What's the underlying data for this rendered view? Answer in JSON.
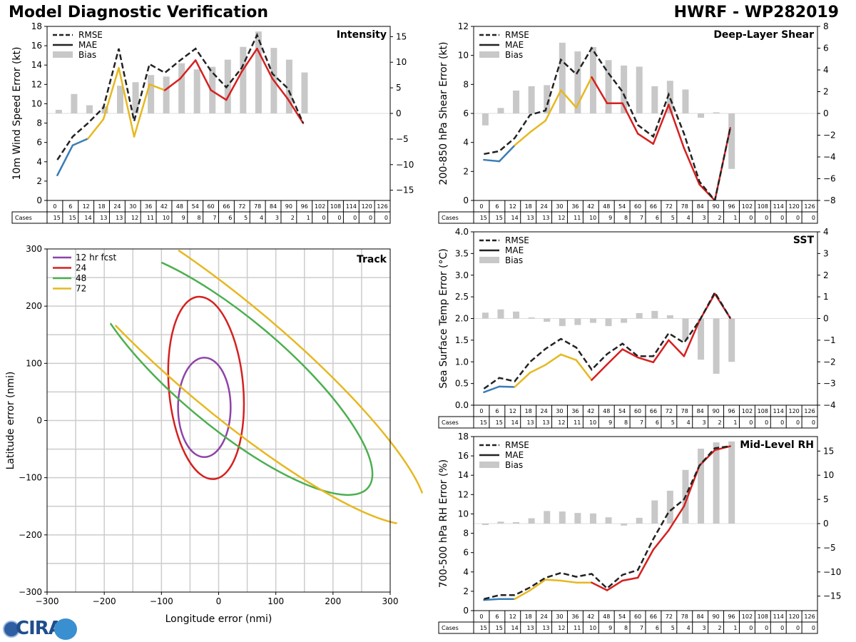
{
  "header": {
    "title_left": "Model Diagnostic Verification",
    "title_right": "HWRF - WP282019"
  },
  "logo": {
    "text": "CIRA"
  },
  "colors": {
    "rmse": "#222222",
    "mae_early": "#3a7db5",
    "mae_mid": "#e6b820",
    "mae_late": "#d62020",
    "bias": "#c8c8c8",
    "track_12": "#8e44a8",
    "track_24": "#d62020",
    "track_48": "#4caf50",
    "track_72": "#e6b820",
    "grid": "#cccccc"
  },
  "chart_data": [
    {
      "id": "intensity",
      "type": "line",
      "title": "Intensity",
      "ylabel": "10m Wind Speed Error (kt)",
      "ylim": [
        0,
        18
      ],
      "yticks": [
        0,
        2,
        4,
        6,
        8,
        10,
        12,
        14,
        16,
        18
      ],
      "y2lim": [
        -17,
        17
      ],
      "y2ticks": [
        -15,
        -10,
        -5,
        0,
        5,
        10,
        15
      ],
      "legend": [
        "RMSE",
        "MAE",
        "Bias"
      ],
      "x": [
        0,
        6,
        12,
        18,
        24,
        30,
        36,
        42,
        48,
        54,
        60,
        66,
        72,
        78,
        84,
        90,
        96
      ],
      "rmse": [
        4.2,
        6.6,
        8.0,
        9.6,
        15.7,
        8.2,
        14.1,
        13.2,
        14.5,
        15.7,
        13.4,
        11.7,
        13.7,
        17.1,
        13.1,
        11.6,
        8.0
      ],
      "mae": [
        2.6,
        5.7,
        6.4,
        8.4,
        13.7,
        6.6,
        12.0,
        11.4,
        12.6,
        14.5,
        11.4,
        10.4,
        13.3,
        15.7,
        12.6,
        10.5,
        8.0
      ],
      "bias": [
        0.7,
        3.8,
        1.6,
        1.4,
        5.4,
        6.1,
        7.5,
        7.2,
        9.8,
        8.6,
        9.1,
        10.5,
        13.0,
        16.0,
        12.8,
        10.5,
        8.0
      ]
    },
    {
      "id": "shear",
      "type": "line",
      "title": "Deep-Layer Shear",
      "ylabel": "200-850 hPa Shear Error (kt)",
      "ylim": [
        0,
        12
      ],
      "yticks": [
        0,
        2,
        4,
        6,
        8,
        10,
        12
      ],
      "y2lim": [
        -8,
        8
      ],
      "y2ticks": [
        -8,
        -6,
        -4,
        -2,
        0,
        2,
        4,
        6,
        8
      ],
      "legend": [
        "RMSE",
        "MAE",
        "Bias"
      ],
      "x": [
        0,
        6,
        12,
        18,
        24,
        30,
        36,
        42,
        48,
        54,
        60,
        66,
        72,
        78,
        84,
        90,
        96
      ],
      "rmse": [
        3.2,
        3.4,
        4.3,
        5.9,
        6.2,
        9.7,
        8.7,
        10.5,
        8.9,
        7.5,
        5.2,
        4.4,
        7.3,
        4.6,
        1.3,
        0.0,
        5.0
      ],
      "mae": [
        2.8,
        2.7,
        3.8,
        4.7,
        5.5,
        7.6,
        6.4,
        8.5,
        6.7,
        6.7,
        4.6,
        3.9,
        6.6,
        3.6,
        1.1,
        0.0,
        5.0
      ],
      "bias": [
        -1.1,
        0.5,
        2.1,
        2.5,
        2.6,
        6.5,
        5.7,
        6.1,
        4.9,
        4.4,
        4.3,
        2.5,
        3.0,
        2.2,
        -0.4,
        0.1,
        -5.1
      ]
    },
    {
      "id": "sst",
      "type": "line",
      "title": "SST",
      "ylabel": "Sea Surface Temp Error (°C)",
      "ylim": [
        0,
        4
      ],
      "yticks": [
        0.0,
        0.5,
        1.0,
        1.5,
        2.0,
        2.5,
        3.0,
        3.5,
        4.0
      ],
      "y2lim": [
        -4,
        4
      ],
      "y2ticks": [
        -4,
        -3,
        -2,
        -1,
        0,
        1,
        2,
        3,
        4
      ],
      "legend": [
        "RMSE",
        "MAE",
        "Bias"
      ],
      "x": [
        0,
        6,
        12,
        18,
        24,
        30,
        36,
        42,
        48,
        54,
        60,
        66,
        72,
        78,
        84,
        90,
        96
      ],
      "rmse": [
        0.38,
        0.63,
        0.55,
        1.0,
        1.3,
        1.53,
        1.33,
        0.82,
        1.18,
        1.42,
        1.13,
        1.13,
        1.66,
        1.44,
        1.95,
        2.6,
        2.01
      ],
      "mae": [
        0.3,
        0.43,
        0.42,
        0.75,
        0.93,
        1.17,
        1.04,
        0.58,
        0.94,
        1.29,
        1.1,
        0.99,
        1.5,
        1.13,
        1.95,
        2.57,
        2.01
      ],
      "bias": [
        0.27,
        0.42,
        0.32,
        0.05,
        -0.15,
        -0.35,
        -0.3,
        -0.2,
        -0.35,
        -0.2,
        0.25,
        0.35,
        0.15,
        -1.0,
        -1.9,
        -2.55,
        -2.0
      ]
    },
    {
      "id": "rh",
      "type": "line",
      "title": "Mid-Level RH",
      "ylabel": "700-500 hPa RH Error (%)",
      "ylim": [
        0,
        18
      ],
      "yticks": [
        0,
        2,
        4,
        6,
        8,
        10,
        12,
        14,
        16,
        18
      ],
      "y2lim": [
        -18,
        18
      ],
      "y2ticks": [
        -15,
        -10,
        -5,
        0,
        5,
        10,
        15
      ],
      "legend": [
        "RMSE",
        "MAE",
        "Bias"
      ],
      "x": [
        0,
        6,
        12,
        18,
        24,
        30,
        36,
        42,
        48,
        54,
        60,
        66,
        72,
        78,
        84,
        90,
        96
      ],
      "rmse": [
        1.2,
        1.6,
        1.6,
        2.4,
        3.4,
        3.9,
        3.5,
        3.8,
        2.3,
        3.7,
        4.2,
        7.4,
        10.2,
        11.5,
        15.0,
        16.8,
        17.0
      ],
      "mae": [
        1.1,
        1.2,
        1.2,
        2.1,
        3.2,
        3.1,
        2.9,
        2.9,
        2.1,
        3.1,
        3.4,
        6.3,
        8.3,
        10.8,
        15.0,
        16.6,
        17.0
      ],
      "bias": [
        -0.3,
        0.4,
        0.3,
        1.1,
        2.6,
        2.5,
        2.2,
        2.1,
        1.3,
        -0.4,
        1.2,
        4.8,
        6.8,
        11.1,
        15.5,
        16.8,
        17.0
      ]
    },
    {
      "id": "track",
      "type": "ellipse",
      "title": "Track",
      "xlabel": "Longitude error (nmi)",
      "ylabel": "Latitude error (nmi)",
      "xlim": [
        -300,
        300
      ],
      "ylim": [
        -300,
        300
      ],
      "ticks": [
        -300,
        -200,
        -100,
        0,
        100,
        200,
        300
      ],
      "legend": [
        "12 hr fcst",
        "24",
        "48",
        "72"
      ],
      "ellipses": [
        {
          "label": "12 hr fcst",
          "cx": -25,
          "cy": 23,
          "rx": 46,
          "ry": 87,
          "angle": 0
        },
        {
          "label": "24",
          "cx": -22,
          "cy": 57,
          "rx": 65,
          "ry": 160,
          "angle": -5
        },
        {
          "label": "48",
          "cx": 20,
          "cy": 85,
          "rx": 95,
          "ry": 315,
          "angle": -50
        },
        {
          "label": "72",
          "cx": 20,
          "cy": 110,
          "rx": 95,
          "ry": 440,
          "angle": -50
        }
      ]
    }
  ],
  "cases_table": {
    "label": "Cases",
    "hours": [
      "0",
      "6",
      "12",
      "18",
      "24",
      "30",
      "36",
      "42",
      "48",
      "54",
      "60",
      "66",
      "72",
      "78",
      "84",
      "90",
      "96",
      "102",
      "108",
      "114",
      "120",
      "126"
    ],
    "counts": [
      "15",
      "15",
      "14",
      "13",
      "13",
      "12",
      "11",
      "10",
      "9",
      "8",
      "7",
      "6",
      "5",
      "4",
      "3",
      "2",
      "1",
      "0",
      "0",
      "0",
      "0",
      "0"
    ]
  }
}
